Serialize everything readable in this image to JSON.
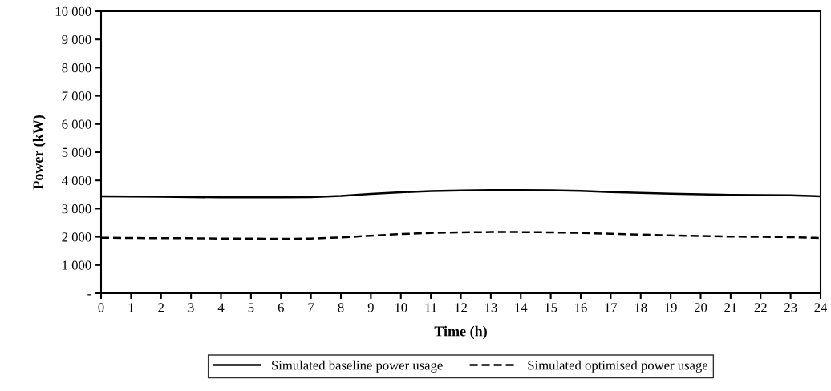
{
  "chart_data": {
    "type": "line",
    "xlabel": "Time (h)",
    "ylabel": "Power (kW)",
    "x": [
      0,
      1,
      2,
      3,
      4,
      5,
      6,
      7,
      8,
      9,
      10,
      11,
      12,
      13,
      14,
      15,
      16,
      17,
      18,
      19,
      20,
      21,
      22,
      23,
      24
    ],
    "series": [
      {
        "name": "Simulated baseline power usage",
        "color": "#000000",
        "line_style": "solid",
        "values": [
          3440,
          3430,
          3420,
          3410,
          3400,
          3400,
          3400,
          3410,
          3450,
          3520,
          3580,
          3620,
          3640,
          3660,
          3660,
          3650,
          3630,
          3590,
          3560,
          3530,
          3510,
          3490,
          3480,
          3470,
          3440
        ]
      },
      {
        "name": "Simulated optimised power usage",
        "color": "#000000",
        "line_style": "dashed",
        "values": [
          1970,
          1960,
          1950,
          1950,
          1940,
          1940,
          1930,
          1940,
          1980,
          2040,
          2100,
          2140,
          2160,
          2170,
          2170,
          2160,
          2140,
          2110,
          2080,
          2050,
          2030,
          2010,
          2000,
          1990,
          1960
        ]
      }
    ],
    "xlim": [
      0,
      24
    ],
    "xticks": [
      0,
      1,
      2,
      3,
      4,
      5,
      6,
      7,
      8,
      9,
      10,
      11,
      12,
      13,
      14,
      15,
      16,
      17,
      18,
      19,
      20,
      21,
      22,
      23,
      24
    ],
    "ylim": [
      0,
      10000
    ],
    "yticks": [
      {
        "value": 0,
        "label": "-"
      },
      {
        "value": 1000,
        "label": "1 000"
      },
      {
        "value": 2000,
        "label": "2 000"
      },
      {
        "value": 3000,
        "label": "3 000"
      },
      {
        "value": 4000,
        "label": "4 000"
      },
      {
        "value": 5000,
        "label": "5 000"
      },
      {
        "value": 6000,
        "label": "6 000"
      },
      {
        "value": 7000,
        "label": "7 000"
      },
      {
        "value": 8000,
        "label": "8 000"
      },
      {
        "value": 9000,
        "label": "9 000"
      },
      {
        "value": 10000,
        "label": "10 000"
      }
    ],
    "grid": false,
    "legend": "bottom",
    "marker": "none"
  }
}
